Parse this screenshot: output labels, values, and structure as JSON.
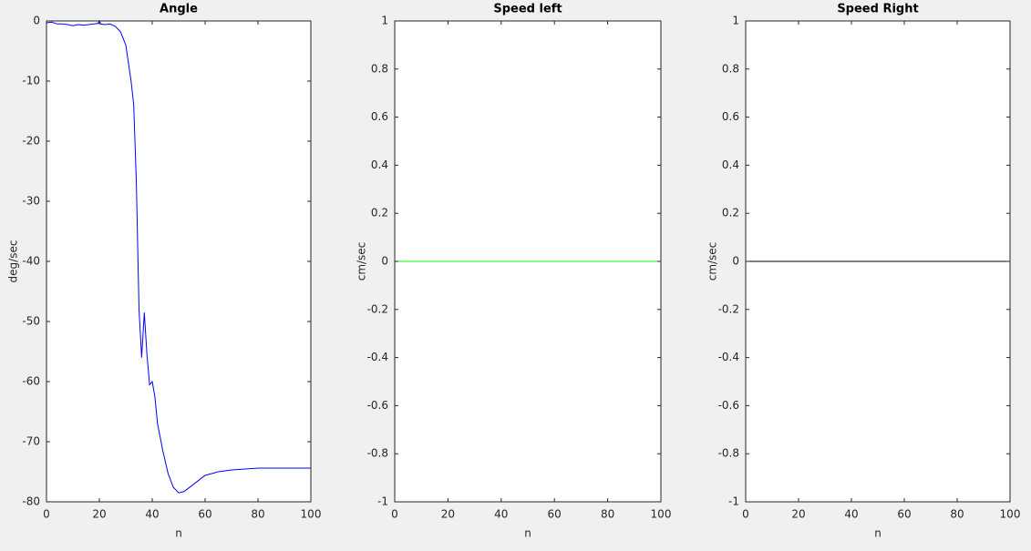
{
  "chart_data": [
    {
      "type": "line",
      "title": "Angle",
      "xlabel": "n",
      "ylabel": "deg/sec",
      "x": [
        0,
        2,
        4,
        6,
        8,
        10,
        12,
        14,
        16,
        18,
        19.5,
        20,
        20.5,
        22,
        24,
        26,
        28,
        30,
        31,
        32,
        33,
        34,
        35,
        36,
        37,
        38,
        39,
        40,
        41,
        42,
        44,
        46,
        48,
        50,
        52,
        55,
        60,
        65,
        70,
        80,
        90,
        100
      ],
      "series": [
        {
          "color": "#0000ff",
          "values": [
            -0.3,
            -0.2,
            -0.5,
            -0.5,
            -0.6,
            -0.8,
            -0.6,
            -0.7,
            -0.6,
            -0.5,
            -0.4,
            0,
            -0.5,
            -0.6,
            -0.5,
            -0.9,
            -1.8,
            -4,
            -7,
            -10,
            -14,
            -27,
            -48,
            -56,
            -48.5,
            -55.5,
            -60.5,
            -60,
            -62.5,
            -67,
            -71.5,
            -75.3,
            -77.6,
            -78.5,
            -78.3,
            -77.3,
            -75.6,
            -75,
            -74.7,
            -74.4,
            -74.4,
            -74.4
          ]
        }
      ],
      "xlim": [
        0,
        100
      ],
      "xticks": [
        0,
        20,
        40,
        60,
        80,
        100
      ],
      "ylim": [
        -80,
        0
      ],
      "yticks": [
        -80,
        -70,
        -60,
        -50,
        -40,
        -30,
        -20,
        -10,
        0
      ]
    },
    {
      "type": "line",
      "title": "Speed left",
      "xlabel": "n",
      "ylabel": "cm/sec",
      "x": [
        0,
        100
      ],
      "series": [
        {
          "color": "#00ff00",
          "values": [
            0,
            0
          ]
        }
      ],
      "xlim": [
        0,
        100
      ],
      "xticks": [
        0,
        20,
        40,
        60,
        80,
        100
      ],
      "ylim": [
        -1,
        1
      ],
      "yticks": [
        -1,
        -0.8,
        -0.6,
        -0.4,
        -0.2,
        0,
        0.2,
        0.4,
        0.6,
        0.8,
        1
      ]
    },
    {
      "type": "line",
      "title": "Speed Right",
      "xlabel": "n",
      "ylabel": "cm/sec",
      "x": [
        0,
        100
      ],
      "series": [
        {
          "color": "#000000",
          "values": [
            0,
            0
          ]
        }
      ],
      "xlim": [
        0,
        100
      ],
      "xticks": [
        0,
        20,
        40,
        60,
        80,
        100
      ],
      "ylim": [
        -1,
        1
      ],
      "yticks": [
        -1,
        -0.8,
        -0.6,
        -0.4,
        -0.2,
        0,
        0.2,
        0.4,
        0.6,
        0.8,
        1
      ]
    }
  ]
}
